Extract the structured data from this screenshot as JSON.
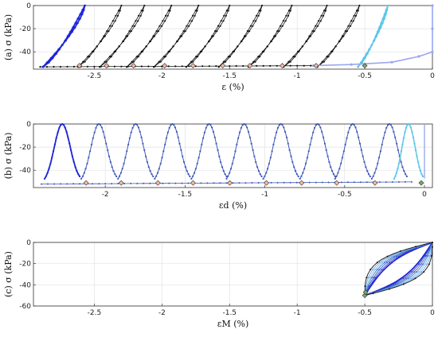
{
  "chart_data": [
    {
      "type": "line",
      "panel": "(a)",
      "ylabel": "(a)  σ (kPa)",
      "xlabel": "ε (%)",
      "xlim": [
        -2.95,
        0
      ],
      "ylim": [
        -55,
        0
      ],
      "y_reversed": true,
      "xticks": [
        -2.5,
        -2,
        -1.5,
        -1,
        -0.5,
        0
      ],
      "xtick_labels": [
        "-2.5",
        "-2",
        "-1.5",
        "-1",
        "-0.5",
        "0"
      ],
      "yticks": [
        0,
        -20,
        -40
      ],
      "ytick_labels": [
        "0",
        "-20",
        "-40"
      ],
      "grid": true,
      "cycles_black": [
        {
          "x_low": -2.62,
          "x_high": -2.3
        },
        {
          "x_low": -2.46,
          "x_high": -2.13
        },
        {
          "x_low": -2.26,
          "x_high": -1.93
        },
        {
          "x_low": -2.06,
          "x_high": -1.73
        },
        {
          "x_low": -1.82,
          "x_high": -1.5
        },
        {
          "x_low": -1.58,
          "x_high": -1.26
        },
        {
          "x_low": -1.36,
          "x_high": -1.04
        },
        {
          "x_low": -1.1,
          "x_high": -0.78
        },
        {
          "x_low": -0.85,
          "x_high": -0.54
        }
      ],
      "cycle_blue": {
        "x_low": -2.88,
        "x_high": -2.57
      },
      "cycle_cyan": {
        "x_low": -0.55,
        "x_high": -0.33
      },
      "lightblue_path": [
        [
          -0.88,
          -52
        ],
        [
          -0.6,
          -51
        ],
        [
          -0.3,
          -49
        ],
        [
          -0.1,
          -44
        ],
        [
          0.0,
          -40
        ],
        [
          0.0,
          -20
        ],
        [
          0.0,
          0
        ]
      ],
      "baseline": [
        [
          -2.9,
          -53
        ],
        [
          -0.85,
          -52
        ]
      ],
      "markers_x": [
        -2.61,
        -2.41,
        -2.21,
        -1.98,
        -1.77,
        -1.55,
        -1.35,
        -1.11,
        -0.86,
        -0.5
      ]
    },
    {
      "type": "line",
      "panel": "(b)",
      "ylabel": "(b)  σ (kPa)",
      "xlabel": "εd (%)",
      "xlim": [
        -2.45,
        0.05
      ],
      "ylim": [
        -55,
        0
      ],
      "y_reversed": true,
      "xticks": [
        -2,
        -1.5,
        -1,
        -0.5,
        0
      ],
      "xtick_labels": [
        "-2",
        "-1.5",
        "-1",
        "-0.5",
        "0"
      ],
      "yticks": [
        0,
        -20,
        -40
      ],
      "ytick_labels": [
        "0",
        "-20",
        "-40"
      ],
      "grid": true,
      "peaks_x": [
        -2.27,
        -2.04,
        -1.81,
        -1.58,
        -1.35,
        -1.13,
        -0.9,
        -0.67,
        -0.45,
        -0.22
      ],
      "cyan_peak_x": -0.1,
      "markers_x": [
        -2.12,
        -1.9,
        -1.67,
        -1.45,
        -1.22,
        -0.99,
        -0.77,
        -0.55,
        -0.31,
        -0.02
      ]
    },
    {
      "type": "line",
      "panel": "(c)",
      "ylabel": "(c)  σ (kPa)",
      "xlabel": "εM (%)",
      "xlim": [
        -2.95,
        0
      ],
      "ylim": [
        -60,
        0
      ],
      "y_reversed": true,
      "xticks": [
        -2.5,
        -2,
        -1.5,
        -1,
        -0.5,
        0
      ],
      "xtick_labels": [
        "-2.5",
        "-2",
        "-1.5",
        "-1",
        "-0.5",
        "0"
      ],
      "yticks": [
        0,
        -20,
        -40,
        -60
      ],
      "ytick_labels": [
        "0",
        "-20",
        "-40",
        "-60"
      ],
      "grid": true,
      "loop_start": [
        -0.5,
        -50
      ],
      "loop_end": [
        0.0,
        0.0
      ],
      "marker": [
        -0.5,
        -50
      ]
    }
  ]
}
